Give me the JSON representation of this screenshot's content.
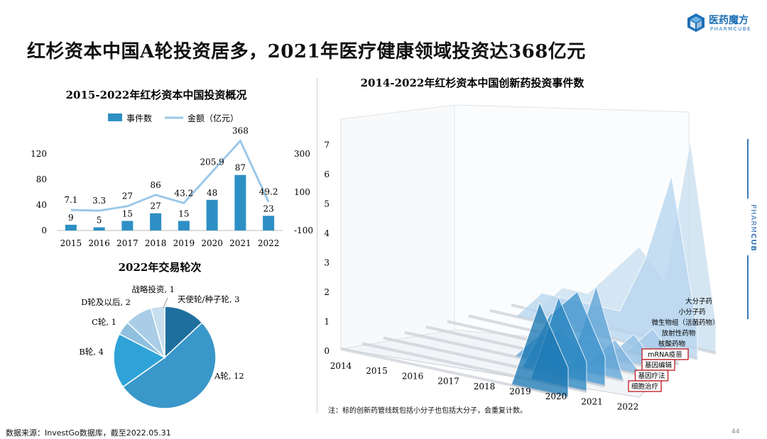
{
  "page": {
    "title": "红杉资本中国A轮投资居多，2021年医疗健康领域投资达368亿元",
    "source": "数据来源：InvestGo数据库，截至2022.05.31",
    "page_number": "44",
    "note": "注：标的创新药管线既包括小分子也包括大分子，会重复计数。",
    "brand_cn": "医药魔方",
    "brand_en": "PHARMCUBE",
    "sidebar_brand_a": "PHARM",
    "sidebar_brand_b": "CUBE",
    "colors": {
      "bar": "#2e8fc4",
      "line": "#9cc8e8",
      "pie_dark": "#1f6f9e",
      "accent": "#1d6fb5"
    }
  },
  "chart_data": [
    {
      "type": "bar",
      "title": "2015-2022年红杉资本中国投资概况",
      "categories": [
        "2015",
        "2016",
        "2017",
        "2018",
        "2019",
        "2020",
        "2021",
        "2022"
      ],
      "series": [
        {
          "name": "事件数",
          "values": [
            9,
            5,
            15,
            27,
            15,
            48,
            87,
            23
          ],
          "labels": [
            "9",
            "5",
            "15",
            "27",
            "15",
            "48",
            "87",
            "23"
          ]
        },
        {
          "name": "金额（亿元）",
          "type": "line",
          "values": [
            7.1,
            3.3,
            27,
            86,
            43.2,
            205.9,
            368,
            49.2
          ],
          "labels": [
            "7.1",
            "3.3",
            "27",
            "86",
            "43.2",
            "205.9",
            "368",
            "49.2"
          ]
        }
      ],
      "y_left": {
        "ticks": [
          "0",
          "40",
          "80",
          "120"
        ],
        "range": [
          0,
          120
        ]
      },
      "y_right": {
        "ticks": [
          "-100",
          "100",
          "300"
        ],
        "range": [
          -100,
          300
        ]
      },
      "legend": "top"
    },
    {
      "type": "pie",
      "title": "2022年交易轮次",
      "slices": [
        {
          "label": "天使轮/种子轮, 3",
          "value": 3,
          "color": "#1f6f9e"
        },
        {
          "label": "A轮, 12",
          "value": 12,
          "color": "#3a97c9"
        },
        {
          "label": "B轮, 4",
          "value": 4,
          "color": "#2fa3d8"
        },
        {
          "label": "C轮, 1",
          "value": 1,
          "color": "#8fc0de"
        },
        {
          "label": "D轮及以后, 2",
          "value": 2,
          "color": "#a9cde6"
        },
        {
          "label": "战略投资, 1",
          "value": 1,
          "color": "#c7dfef"
        }
      ]
    },
    {
      "type": "area",
      "title": "2014-2022年红杉资本中国创新药投资事件数",
      "x": [
        "2014",
        "2015",
        "2016",
        "2017",
        "2018",
        "2019",
        "2020",
        "2021",
        "2022"
      ],
      "y_ticks": [
        "0",
        "1",
        "2",
        "3",
        "4",
        "5",
        "6",
        "7"
      ],
      "series": [
        {
          "name": "大分子药",
          "values": [
            0,
            0,
            1,
            1,
            2,
            3,
            2,
            7,
            1
          ]
        },
        {
          "name": "小分子药",
          "values": [
            0,
            0,
            1,
            1,
            1,
            1,
            3,
            6,
            1
          ]
        },
        {
          "name": "微生物组（活菌药物）",
          "values": [
            0,
            0,
            0,
            0,
            0,
            0,
            0,
            1,
            0
          ]
        },
        {
          "name": "放射性药物",
          "values": [
            0,
            0,
            0,
            0,
            0,
            0,
            0,
            1,
            0
          ]
        },
        {
          "name": "核酸药物",
          "values": [
            0,
            0,
            0,
            0,
            0,
            1,
            0,
            1,
            0
          ]
        },
        {
          "name": "mRNA疫苗",
          "values": [
            0,
            0,
            0,
            0,
            0,
            1,
            0,
            3,
            0
          ]
        },
        {
          "name": "基因编辑",
          "values": [
            0,
            0,
            0,
            0,
            0,
            0,
            2,
            3,
            1
          ]
        },
        {
          "name": "基因疗法",
          "values": [
            0,
            0,
            0,
            0,
            0,
            0,
            0,
            3,
            1
          ]
        },
        {
          "name": "细胞治疗",
          "values": [
            0,
            0,
            0,
            0,
            0,
            0,
            0,
            3,
            1
          ]
        }
      ],
      "boxed_series": [
        "mRNA疫苗",
        "基因编辑",
        "基因疗法",
        "细胞治疗"
      ]
    }
  ]
}
